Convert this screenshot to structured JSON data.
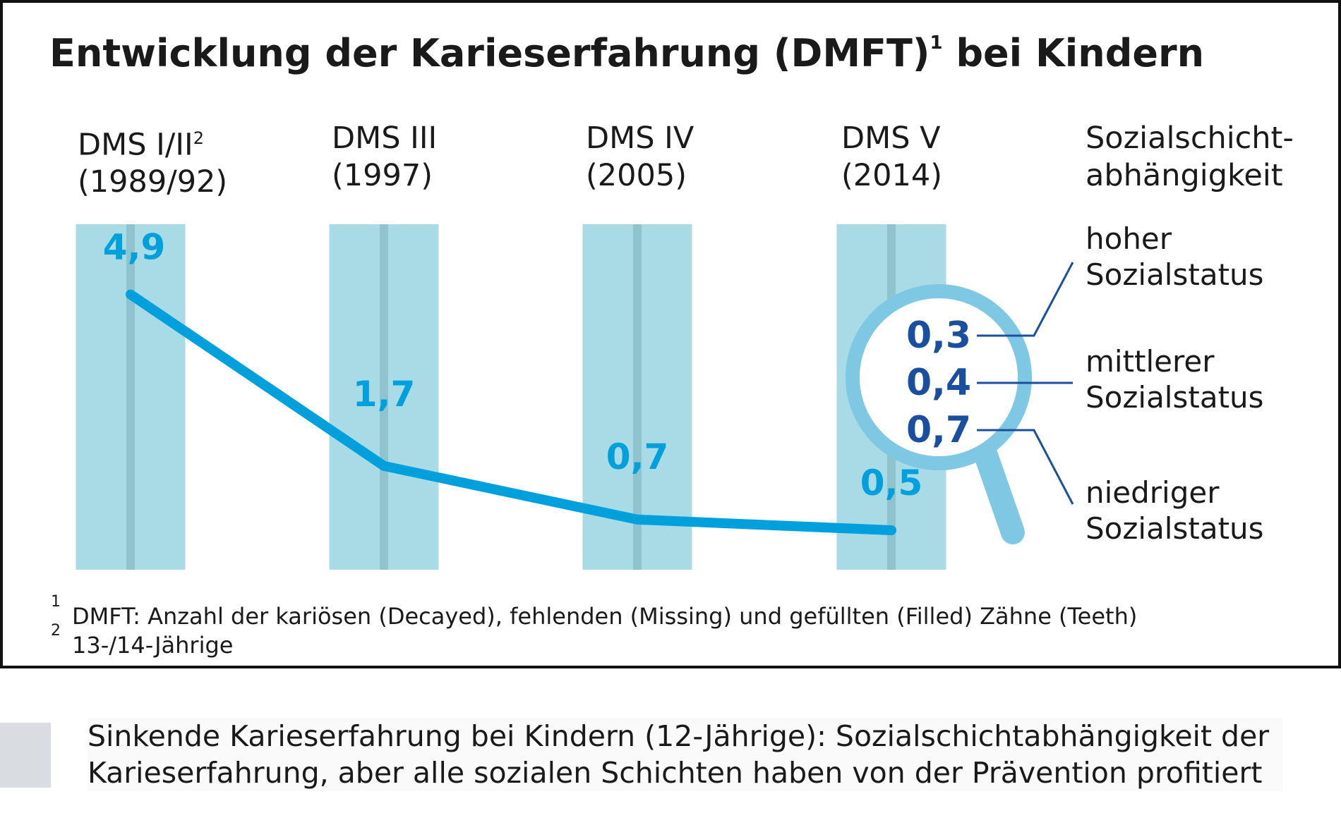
{
  "title": "Entwicklung der Karieserfahrung (DMFT)",
  "title_sup": "1",
  "columns": [
    {
      "name": "DMS I/II",
      "sup": "2",
      "year": "(1989/92)"
    },
    {
      "name": "DMS III",
      "sup": "",
      "year": "(1997)"
    },
    {
      "name": "DMS IV",
      "sup": "",
      "year": "(2005)"
    },
    {
      "name": "DMS V",
      "sup": "",
      "year": "(2014)"
    }
  ],
  "title_tail": " bei Kindern",
  "social_header": [
    "Sozialschicht-",
    "abhängigkeit"
  ],
  "status_labels": [
    [
      "hoher",
      "Sozialstatus"
    ],
    [
      "mittlerer",
      "Sozialstatus"
    ],
    [
      "niedriger",
      "Sozialstatus"
    ]
  ],
  "footnotes": [
    {
      "num": "1",
      "text": "DMFT: Anzahl der kariösen (Decayed), fehlenden (Missing) und gefüllten (Filled) Zähne (Teeth)"
    },
    {
      "num": "2",
      "text": "13-/14-Jährige"
    }
  ],
  "caption": [
    "Sinkende Karieserfahrung bei Kindern (12-Jährige): Sozialschichtabhängigkeit der",
    "Karieserfahrung, aber alle sozialen Schichten haben von der Prävention profitiert"
  ],
  "colors": {
    "line": "#00a0dc",
    "bar": "#a8dbe6",
    "bar_center": "#8fc4cf",
    "dark_value": "#1a4fa0",
    "lens": "#7ec8e3"
  },
  "chart_data": {
    "type": "line",
    "categories": [
      "DMS I/II (1989/92)",
      "DMS III (1997)",
      "DMS IV (2005)",
      "DMS V (2014)"
    ],
    "values": [
      4.9,
      1.7,
      0.7,
      0.5
    ],
    "value_labels": [
      "4,9",
      "1,7",
      "0,7",
      "0,5"
    ],
    "ylim": [
      0,
      5.5
    ],
    "breakdown": {
      "category": "DMS V (2014)",
      "groups": [
        "hoher Sozialstatus",
        "mittlerer Sozialstatus",
        "niedriger Sozialstatus"
      ],
      "values": [
        0.3,
        0.4,
        0.7
      ],
      "value_labels": [
        "0,3",
        "0,4",
        "0,7"
      ]
    }
  }
}
